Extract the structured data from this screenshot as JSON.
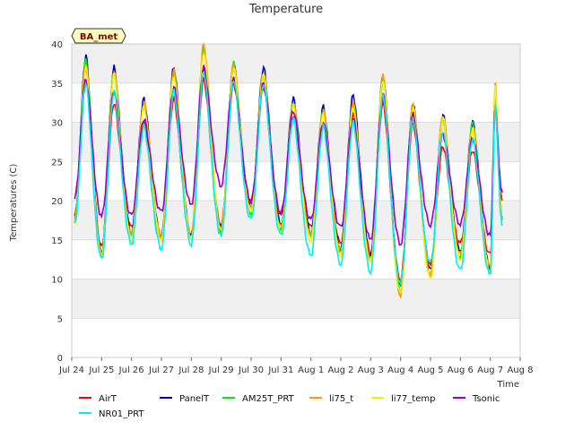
{
  "chart_data": {
    "type": "line",
    "title": "Temperature",
    "xlabel": "Time",
    "ylabel": "Temperatures (C)",
    "badge": "BA_met",
    "xlim": [
      0,
      15
    ],
    "ylim": [
      0,
      40
    ],
    "x_ticks": [
      {
        "x": 0,
        "label": "Jul 24"
      },
      {
        "x": 1,
        "label": "Jul 25"
      },
      {
        "x": 2,
        "label": "Jul 26"
      },
      {
        "x": 3,
        "label": "Jul 27"
      },
      {
        "x": 4,
        "label": "Jul 28"
      },
      {
        "x": 5,
        "label": "Jul 29"
      },
      {
        "x": 6,
        "label": "Jul 30"
      },
      {
        "x": 7,
        "label": "Jul 31"
      },
      {
        "x": 8,
        "label": "Aug 1"
      },
      {
        "x": 9,
        "label": "Aug 2"
      },
      {
        "x": 10,
        "label": "Aug 3"
      },
      {
        "x": 11,
        "label": "Aug 4"
      },
      {
        "x": 12,
        "label": "Aug 5"
      },
      {
        "x": 13,
        "label": "Aug 6"
      },
      {
        "x": 14,
        "label": "Aug 7"
      },
      {
        "x": 15,
        "label": "Aug 8"
      }
    ],
    "y_ticks": [
      0,
      5,
      10,
      15,
      20,
      25,
      30,
      35,
      40
    ],
    "grid": true,
    "legend_position": "bottom",
    "days_x": [
      0.1,
      1,
      2,
      3,
      4,
      5,
      6,
      7,
      8,
      9,
      10,
      11,
      12,
      13,
      14,
      14.4
    ],
    "series": [
      {
        "name": "AirT",
        "color": "#ff0000",
        "peaks": [
          37,
          32.5,
          30,
          33,
          35.5,
          35,
          34.5,
          31,
          30,
          31,
          32.5,
          30,
          27,
          26.5,
          32
        ],
        "mins": [
          18,
          14,
          16.5,
          15.5,
          15.5,
          17,
          20,
          18,
          16.5,
          14.5,
          13.5,
          10,
          12,
          14.5,
          13,
          20
        ]
      },
      {
        "name": "PanelT",
        "color": "#0000cc",
        "peaks": [
          38.5,
          37,
          33,
          37,
          37,
          37.5,
          37,
          33,
          32,
          33.5,
          36,
          32.5,
          31,
          30,
          33
        ],
        "mins": [
          18,
          13.5,
          16,
          15.5,
          15.5,
          16.5,
          19,
          17,
          16,
          14,
          13,
          9,
          11,
          13.5,
          11.5,
          18
        ]
      },
      {
        "name": "AM25T_PRT",
        "color": "#00ee00",
        "peaks": [
          38,
          36.5,
          32,
          36.5,
          39.5,
          37.5,
          36,
          32.5,
          31.5,
          32.5,
          35.5,
          32,
          30.5,
          30,
          33
        ],
        "mins": [
          17.5,
          13,
          15.5,
          15,
          15,
          16,
          18.5,
          16.5,
          15.5,
          13.5,
          12.5,
          8.5,
          10.5,
          13,
          11,
          17.5
        ]
      },
      {
        "name": "li75_t",
        "color": "#ff9900",
        "peaks": [
          37.5,
          36.5,
          32.5,
          36.5,
          40,
          37.5,
          36.5,
          32.5,
          31.5,
          32.5,
          36,
          32.5,
          31,
          29.5,
          35
        ],
        "mins": [
          17.5,
          13,
          15.5,
          15.5,
          15.5,
          16.5,
          19,
          16.5,
          15.5,
          13.5,
          12.5,
          8,
          10.5,
          13,
          11.5,
          18
        ]
      },
      {
        "name": "li77_temp",
        "color": "#ffee00",
        "peaks": [
          37,
          36,
          32,
          36,
          39,
          37,
          36,
          32,
          31,
          32,
          35.5,
          32,
          30.5,
          29,
          34.5
        ],
        "mins": [
          17,
          13,
          15,
          15,
          15,
          16,
          18.5,
          16,
          15,
          13,
          12,
          8,
          10,
          12.5,
          11,
          17.5
        ]
      },
      {
        "name": "Tsonic",
        "color": "#9900cc",
        "peaks": [
          35.5,
          34,
          30.5,
          34.5,
          37,
          35.5,
          35,
          31.5,
          30,
          30.5,
          33.5,
          31,
          28.5,
          28,
          32
        ],
        "mins": [
          20.5,
          18,
          18,
          18.5,
          19.5,
          22,
          20,
          18.5,
          17.5,
          16.5,
          15,
          14.5,
          17,
          17,
          15.5,
          21
        ]
      },
      {
        "name": "NR01_PRT",
        "color": "#00eeee",
        "peaks": [
          35,
          34,
          29.5,
          34,
          36.5,
          35.5,
          35,
          30.5,
          29.5,
          30,
          33.5,
          30.5,
          29,
          28,
          32
        ],
        "mins": [
          17,
          12.5,
          14.5,
          14,
          14.5,
          15.5,
          17.5,
          15.5,
          13,
          12,
          11,
          9.5,
          12,
          11,
          10.5,
          17
        ]
      }
    ]
  }
}
